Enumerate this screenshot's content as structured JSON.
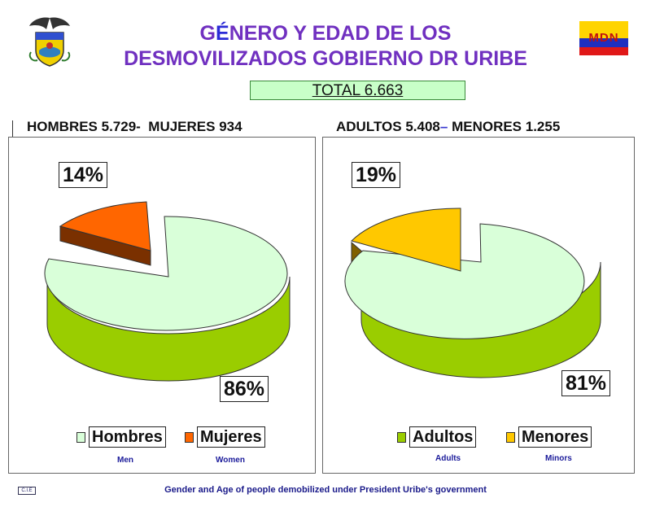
{
  "header": {
    "title_line1_pre": "G",
    "title_line1_accent": "É",
    "title_line1_post": "NERO Y EDAD DE LOS",
    "title_line2": "DESMOVILIZADOS GOBIERNO DR URIBE",
    "logo_text": "MDN",
    "total": "TOTAL 6.663"
  },
  "colors": {
    "title": "#7030c0",
    "hombres_top": "#d9ffd9",
    "hombres_side": "#9acd00",
    "mujeres_top": "#ff6600",
    "mujeres_side": "#7a3000",
    "adultos_top": "#d9ffd9",
    "adultos_side": "#9acd00",
    "menores_top": "#ffc800",
    "menores_side": "#806000"
  },
  "left_panel": {
    "heading_a": "HOMBRES 5.729-",
    "heading_b": "MUJERES 934",
    "legend": [
      {
        "label": "Hombres",
        "english": "Men"
      },
      {
        "label": "Mujeres",
        "english": "Women"
      }
    ]
  },
  "right_panel": {
    "heading_a": "ADULTOS 5.408",
    "heading_dash": "–",
    "heading_b": "MENORES 1.255",
    "legend": [
      {
        "label": "Adultos",
        "english": "Adults"
      },
      {
        "label": "Menores",
        "english": "Minors"
      }
    ]
  },
  "footer": {
    "caption": "Gender and Age of people demobilized under President Uribe's government",
    "small_mark": "C.I.E"
  },
  "chart_data": [
    {
      "type": "pie",
      "title": "HOMBRES 5.729- MUJERES 934",
      "categories": [
        "Hombres",
        "Mujeres"
      ],
      "values": [
        86,
        14
      ],
      "data_labels": [
        "86%",
        "14%"
      ]
    },
    {
      "type": "pie",
      "title": "ADULTOS 5.408– MENORES 1.255",
      "categories": [
        "Adultos",
        "Menores"
      ],
      "values": [
        81,
        19
      ],
      "data_labels": [
        "81%",
        "19%"
      ]
    }
  ]
}
